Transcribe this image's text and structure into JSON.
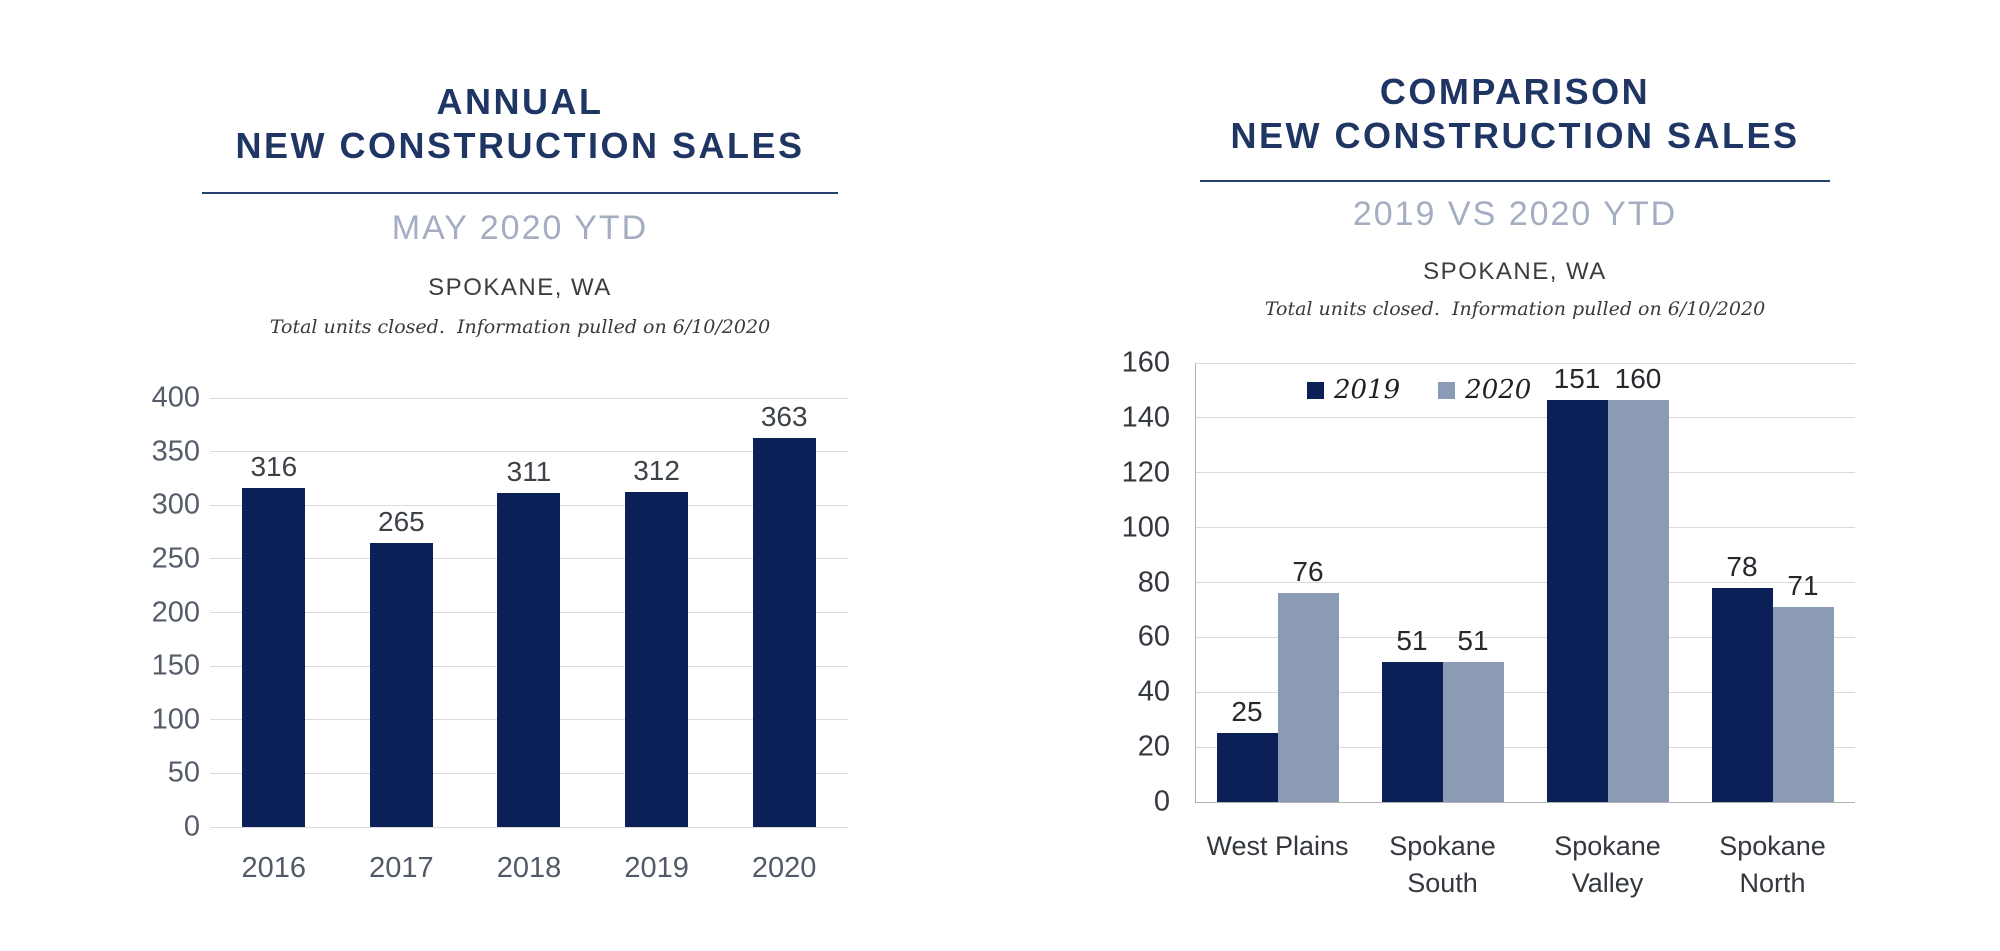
{
  "page": {
    "background": "#ffffff"
  },
  "colors": {
    "title_navy": "#1f3564",
    "subtitle_gray_blue": "#a4adc2",
    "bar_navy": "#0b2057",
    "bar_gray_blue": "#8b9ab5",
    "gridline": "#dadada",
    "axis_line": "#b3b3b3"
  },
  "chart_data": [
    {
      "type": "bar",
      "title": "ANNUAL NEW CONSTRUCTION SALES",
      "title_lines": [
        "ANNUAL",
        "NEW CONSTRUCTION SALES"
      ],
      "subtitle": "MAY 2020 YTD",
      "location": "SPOKANE, WA",
      "note": "Total units closed.  Information pulled on 6/10/2020",
      "categories": [
        "2016",
        "2017",
        "2018",
        "2019",
        "2020"
      ],
      "values": [
        316,
        265,
        311,
        312,
        363
      ],
      "bar_color": "#0b2057",
      "xlabel": "",
      "ylabel": "",
      "ylim": [
        0,
        400
      ],
      "ytick_step": 50,
      "yticks": [
        0,
        50,
        100,
        150,
        200,
        250,
        300,
        350,
        400
      ],
      "grid": true,
      "legend": null,
      "value_labels": true
    },
    {
      "type": "bar",
      "title": "COMPARISON NEW CONSTRUCTION SALES",
      "title_lines": [
        "COMPARISON",
        "NEW CONSTRUCTION SALES"
      ],
      "subtitle": "2019 VS 2020 YTD",
      "location": "SPOKANE, WA",
      "note": "Total units closed.  Information pulled on 6/10/2020",
      "categories": [
        "West Plains",
        "Spokane\nSouth",
        "Spokane\nValley",
        "Spokane\nNorth"
      ],
      "series": [
        {
          "name": "2019",
          "color": "#0b2057",
          "values": [
            25,
            51,
            151,
            78
          ]
        },
        {
          "name": "2020",
          "color": "#8b9ab5",
          "values": [
            76,
            51,
            160,
            71
          ]
        }
      ],
      "xlabel": "",
      "ylabel": "",
      "ylim": [
        0,
        160
      ],
      "ytick_step": 20,
      "yticks": [
        0,
        20,
        40,
        60,
        80,
        100,
        120,
        140,
        160
      ],
      "grid": true,
      "legend_position": "top-inside",
      "value_labels": true
    }
  ]
}
